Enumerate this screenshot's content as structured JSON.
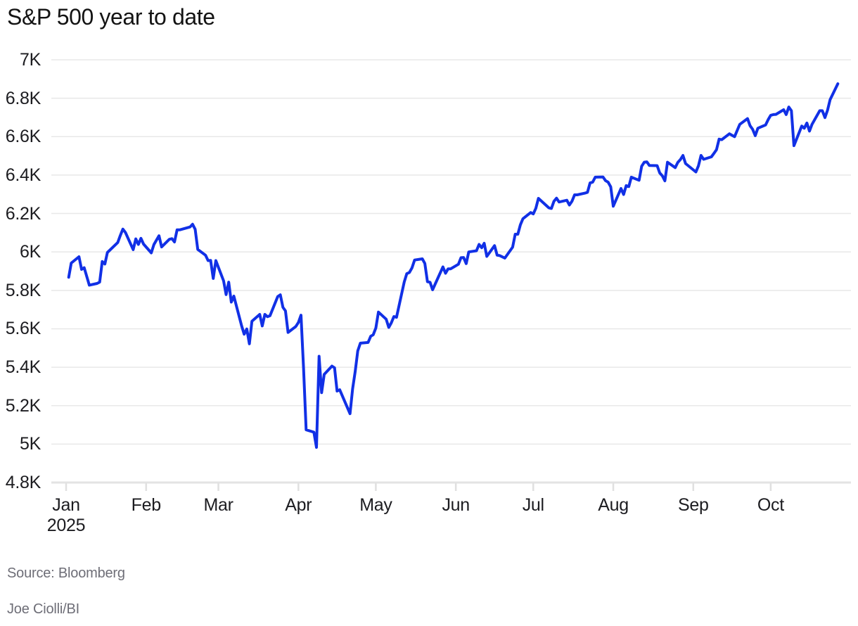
{
  "chart_data": {
    "type": "line",
    "title": "S&P 500 year to date",
    "legend": "none",
    "grid": "horizontal",
    "x_axis": {
      "months": [
        "Jan",
        "Feb",
        "Mar",
        "Apr",
        "May",
        "Jun",
        "Jul",
        "Aug",
        "Sep",
        "Oct"
      ],
      "year": "2025"
    },
    "y_axis": {
      "labels": [
        "7K",
        "6.8K",
        "6.6K",
        "6.4K",
        "6.2K",
        "6K",
        "5.8K",
        "5.6K",
        "5.4K",
        "5.2K",
        "5K",
        "4.8K"
      ],
      "values": [
        7000,
        6800,
        6600,
        6400,
        6200,
        6000,
        5800,
        5600,
        5400,
        5200,
        5000,
        4800
      ],
      "min": 4800,
      "max": 7000
    },
    "series": [
      {
        "name": "S&P 500",
        "color": "#1130e6",
        "dates": [
          "01-02",
          "01-03",
          "01-06",
          "01-07",
          "01-08",
          "01-10",
          "01-13",
          "01-14",
          "01-15",
          "01-16",
          "01-17",
          "01-21",
          "01-22",
          "01-23",
          "01-24",
          "01-27",
          "01-28",
          "01-29",
          "01-30",
          "01-31",
          "02-03",
          "02-04",
          "02-05",
          "02-06",
          "02-07",
          "02-10",
          "02-11",
          "02-12",
          "02-13",
          "02-14",
          "02-18",
          "02-19",
          "02-20",
          "02-21",
          "02-24",
          "02-25",
          "02-26",
          "02-27",
          "02-28",
          "03-03",
          "03-04",
          "03-05",
          "03-06",
          "03-07",
          "03-10",
          "03-11",
          "03-12",
          "03-13",
          "03-14",
          "03-17",
          "03-18",
          "03-19",
          "03-20",
          "03-21",
          "03-24",
          "03-25",
          "03-26",
          "03-27",
          "03-28",
          "03-31",
          "04-01",
          "04-02",
          "04-03",
          "04-04",
          "04-07",
          "04-08",
          "04-09",
          "04-10",
          "04-11",
          "04-14",
          "04-15",
          "04-16",
          "04-17",
          "04-21",
          "04-22",
          "04-23",
          "04-24",
          "04-25",
          "04-28",
          "04-29",
          "04-30",
          "05-01",
          "05-02",
          "05-05",
          "05-06",
          "05-07",
          "05-08",
          "05-09",
          "05-12",
          "05-13",
          "05-14",
          "05-15",
          "05-16",
          "05-19",
          "05-20",
          "05-21",
          "05-22",
          "05-23",
          "05-27",
          "05-28",
          "05-29",
          "05-30",
          "06-02",
          "06-03",
          "06-04",
          "06-05",
          "06-06",
          "06-09",
          "06-10",
          "06-11",
          "06-12",
          "06-13",
          "06-16",
          "06-17",
          "06-18",
          "06-20",
          "06-23",
          "06-24",
          "06-25",
          "06-26",
          "06-27",
          "06-30",
          "07-01",
          "07-02",
          "07-03",
          "07-07",
          "07-08",
          "07-09",
          "07-10",
          "07-11",
          "07-14",
          "07-15",
          "07-16",
          "07-17",
          "07-18",
          "07-21",
          "07-22",
          "07-23",
          "07-24",
          "07-25",
          "07-28",
          "07-29",
          "07-30",
          "07-31",
          "08-01",
          "08-04",
          "08-05",
          "08-06",
          "08-07",
          "08-08",
          "08-11",
          "08-12",
          "08-13",
          "08-14",
          "08-15",
          "08-18",
          "08-19",
          "08-20",
          "08-21",
          "08-22",
          "08-25",
          "08-26",
          "08-27",
          "08-28",
          "08-29",
          "09-02",
          "09-03",
          "09-04",
          "09-05",
          "09-08",
          "09-09",
          "09-10",
          "09-11",
          "09-12",
          "09-15",
          "09-16",
          "09-17",
          "09-18",
          "09-19",
          "09-22",
          "09-23",
          "09-24",
          "09-25",
          "09-26",
          "09-29",
          "09-30",
          "10-01",
          "10-02",
          "10-03",
          "10-06",
          "10-07",
          "10-08",
          "10-09",
          "10-10",
          "10-13",
          "10-14",
          "10-15",
          "10-16",
          "10-17",
          "10-20",
          "10-21",
          "10-22",
          "10-23",
          "10-24",
          "10-27"
        ],
        "values": [
          5868,
          5942,
          5975,
          5909,
          5918,
          5827,
          5836,
          5843,
          5950,
          5937,
          5997,
          6049,
          6086,
          6119,
          6101,
          6012,
          6068,
          6039,
          6071,
          6041,
          5995,
          6038,
          6061,
          6084,
          6026,
          6066,
          6069,
          6052,
          6115,
          6115,
          6130,
          6144,
          6118,
          6013,
          5983,
          5955,
          5956,
          5862,
          5955,
          5850,
          5778,
          5843,
          5739,
          5770,
          5615,
          5572,
          5599,
          5522,
          5639,
          5675,
          5615,
          5675,
          5663,
          5668,
          5768,
          5777,
          5712,
          5693,
          5581,
          5612,
          5633,
          5671,
          5397,
          5074,
          5062,
          4983,
          5457,
          5268,
          5363,
          5406,
          5397,
          5276,
          5283,
          5158,
          5288,
          5376,
          5485,
          5525,
          5529,
          5561,
          5569,
          5604,
          5687,
          5650,
          5607,
          5631,
          5664,
          5660,
          5844,
          5887,
          5893,
          5917,
          5958,
          5964,
          5940,
          5845,
          5842,
          5803,
          5922,
          5889,
          5912,
          5912,
          5936,
          5970,
          5971,
          5939,
          6000,
          6006,
          6039,
          6022,
          6045,
          5977,
          6033,
          5983,
          5981,
          5968,
          6025,
          6092,
          6092,
          6141,
          6173,
          6205,
          6198,
          6227,
          6279,
          6230,
          6226,
          6263,
          6280,
          6260,
          6269,
          6244,
          6264,
          6297,
          6297,
          6306,
          6310,
          6359,
          6363,
          6389,
          6390,
          6371,
          6363,
          6339,
          6238,
          6330,
          6299,
          6345,
          6340,
          6389,
          6373,
          6446,
          6467,
          6469,
          6450,
          6449,
          6411,
          6396,
          6370,
          6467,
          6439,
          6466,
          6481,
          6502,
          6460,
          6416,
          6448,
          6502,
          6482,
          6495,
          6513,
          6532,
          6587,
          6584,
          6615,
          6607,
          6600,
          6632,
          6664,
          6694,
          6657,
          6638,
          6605,
          6644,
          6661,
          6688,
          6711,
          6715,
          6716,
          6740,
          6715,
          6754,
          6735,
          6553,
          6655,
          6644,
          6671,
          6629,
          6664,
          6735,
          6735,
          6699,
          6738,
          6792,
          6875
        ]
      }
    ],
    "style": {
      "line_color": "#1130e6",
      "grid_color": "#e8e8e8",
      "baseline_color": "#e3e3e3",
      "tick_color": "#e0e0e0",
      "title_color": "#131313",
      "axis_text_color": "#1c1c20",
      "footer_text_color": "#6e6e77",
      "background": "#ffffff"
    }
  },
  "footer": {
    "source": "Source: Bloomberg",
    "byline": "Joe Ciolli/BI"
  }
}
